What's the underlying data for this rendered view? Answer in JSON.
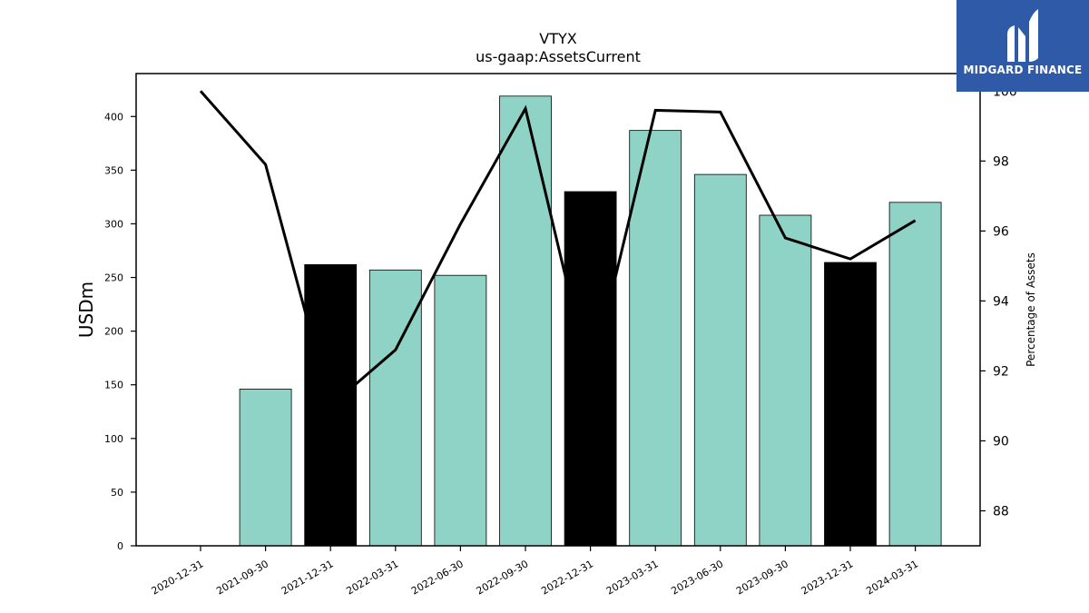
{
  "chart_data": {
    "type": "bar",
    "title": "VTYX",
    "subtitle": "us-gaap:AssetsCurrent",
    "ylabel": "USDm",
    "y2label": "Percentage of Assets",
    "categories": [
      "2020-12-31",
      "2021-09-30",
      "2021-12-31",
      "2022-03-31",
      "2022-06-30",
      "2022-09-30",
      "2022-12-31",
      "2023-03-31",
      "2023-06-30",
      "2023-09-30",
      "2023-12-31",
      "2024-03-31"
    ],
    "series": [
      {
        "values": [
          0,
          146,
          262,
          257,
          252,
          419,
          330,
          387,
          346,
          308,
          264,
          320
        ],
        "bar_colors": [
          "#8fd3c7",
          "#8fd3c7",
          "#000000",
          "#8fd3c7",
          "#8fd3c7",
          "#8fd3c7",
          "#000000",
          "#8fd3c7",
          "#8fd3c7",
          "#8fd3c7",
          "#000000",
          "#8fd3c7"
        ],
        "axis": "left"
      },
      {
        "type": "line",
        "values": [
          100.0,
          97.9,
          91.0,
          92.6,
          96.2,
          99.5,
          91.7,
          99.45,
          99.4,
          95.8,
          95.2,
          96.3
        ],
        "color": "#000000",
        "axis": "right"
      }
    ],
    "ylim": [
      0,
      440
    ],
    "yticks": [
      0,
      50,
      100,
      150,
      200,
      250,
      300,
      350,
      400
    ],
    "y2lim": [
      87,
      100.5
    ],
    "y2ticks": [
      88,
      90,
      92,
      94,
      96,
      98,
      100
    ],
    "grid": false,
    "colors": {
      "accent": "#8fd3c7",
      "highlight": "#000000"
    }
  },
  "logo": {
    "text": "MIDGARD FINANCE",
    "color": "#2e5aa8"
  }
}
